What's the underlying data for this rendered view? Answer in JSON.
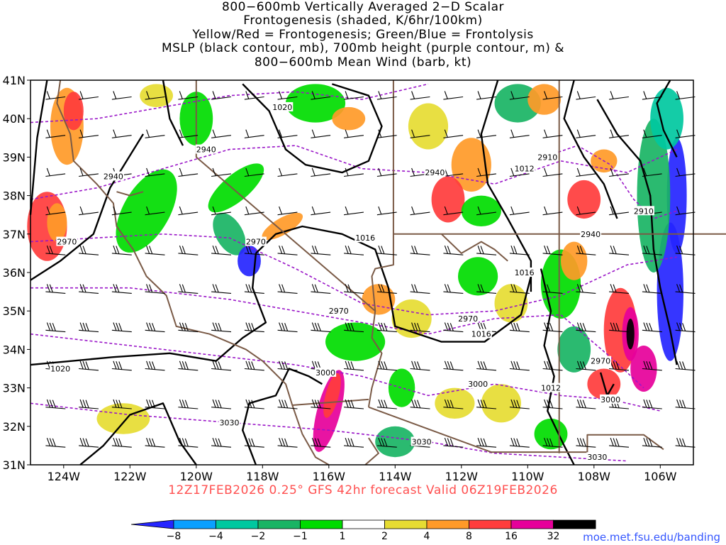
{
  "title_lines": [
    "800−600mb Vertically Averaged 2−D Scalar",
    "Frontogenesis (shaded, K/6hr/100km)",
    "Yellow/Red = Frontogenesis;  Green/Blue = Frontolysis",
    "MSLP (black contour, mb), 700mb height (purple contour, m) &",
    "800−600mb Mean Wind (barb, kt)"
  ],
  "footer": "12Z17FEB2026 0.25° GFS 42hr forecast Valid 06Z19FEB2026",
  "credit": "moe.met.fsu.edu/banding",
  "map": {
    "lon_range": [
      -125,
      -105
    ],
    "lat_range": [
      31,
      41
    ],
    "lat_ticks": [
      "31N",
      "32N",
      "33N",
      "34N",
      "35N",
      "36N",
      "37N",
      "38N",
      "39N",
      "40N",
      "41N"
    ],
    "lon_ticks": [
      "124W",
      "122W",
      "120W",
      "118W",
      "116W",
      "114W",
      "112W",
      "110W",
      "108W",
      "106W"
    ],
    "mslp_labels": [
      {
        "text": "1020",
        "lon": -117.4,
        "lat": 40.3
      },
      {
        "text": "1016",
        "lon": -114.9,
        "lat": 36.9
      },
      {
        "text": "1016",
        "lon": -110.1,
        "lat": 36.0
      },
      {
        "text": "1016",
        "lon": -111.4,
        "lat": 34.4
      },
      {
        "text": "1012",
        "lon": -110.1,
        "lat": 38.7
      },
      {
        "text": "1012",
        "lon": -109.3,
        "lat": 33.0
      },
      {
        "text": "1020",
        "lon": -124.1,
        "lat": 33.5
      }
    ],
    "height_labels": [
      {
        "text": "2940",
        "lon": -119.7,
        "lat": 39.2
      },
      {
        "text": "2940",
        "lon": -122.5,
        "lat": 38.5
      },
      {
        "text": "2940",
        "lon": -112.8,
        "lat": 38.6
      },
      {
        "text": "2940",
        "lon": -108.1,
        "lat": 37.0
      },
      {
        "text": "2910",
        "lon": -109.4,
        "lat": 39.0
      },
      {
        "text": "2910",
        "lon": -106.5,
        "lat": 37.6
      },
      {
        "text": "2970",
        "lon": -123.9,
        "lat": 36.8
      },
      {
        "text": "2970",
        "lon": -118.2,
        "lat": 36.8
      },
      {
        "text": "2970",
        "lon": -115.7,
        "lat": 35.0
      },
      {
        "text": "2970",
        "lon": -111.8,
        "lat": 34.8
      },
      {
        "text": "2970",
        "lon": -107.8,
        "lat": 33.7
      },
      {
        "text": "3000",
        "lon": -116.1,
        "lat": 33.4
      },
      {
        "text": "3000",
        "lon": -111.5,
        "lat": 33.1
      },
      {
        "text": "3000",
        "lon": -107.5,
        "lat": 32.7
      },
      {
        "text": "3030",
        "lon": -119.0,
        "lat": 32.1
      },
      {
        "text": "3030",
        "lon": -113.2,
        "lat": 31.6
      },
      {
        "text": "3030",
        "lon": -107.9,
        "lat": 31.2
      }
    ]
  },
  "colorbar": {
    "labels": [
      "−8",
      "−4",
      "−2",
      "−1",
      "1",
      "2",
      "4",
      "8",
      "16",
      "32"
    ],
    "colors": [
      "#2525ff",
      "#0aa0ff",
      "#00c8a0",
      "#19b464",
      "#00dc00",
      "#ffffff",
      "#e6dc32",
      "#ff9a28",
      "#ff3c3c",
      "#e6009a",
      "#000000",
      "#aaaaaa"
    ]
  },
  "colors": {
    "mslp": "#000000",
    "height": "#9a16c8",
    "border": "#7a5a46",
    "footer": "#ff5050",
    "credit": "#3355ff"
  }
}
